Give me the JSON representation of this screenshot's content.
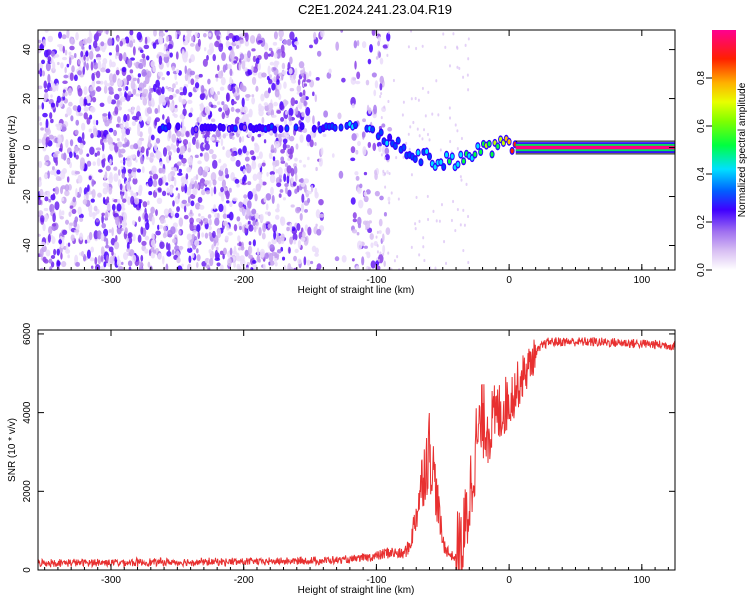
{
  "title": "C2E1.2024.241.23.04.R19",
  "colorbar": {
    "label": "Normalized spectral amplitude",
    "range": [
      0,
      1
    ],
    "ticks": [
      0.0,
      0.2,
      0.4,
      0.6,
      0.8
    ],
    "tick_labels": [
      "0.0",
      "0.2",
      "0.4",
      "0.6",
      "0.8"
    ]
  },
  "chart_data": [
    {
      "type": "heatmap",
      "xlabel": "Height of straight line (km)",
      "ylabel": "Frequency (Hz)",
      "xlim": [
        -355,
        125
      ],
      "ylim": [
        -50,
        48
      ],
      "xticks": [
        -300,
        -200,
        -100,
        0,
        100
      ],
      "yticks": [
        -40,
        -20,
        0,
        20,
        40
      ],
      "colorscale": [
        "#ffffff",
        "#d8bff3",
        "#8a40e8",
        "#4000ff",
        "#0040ff",
        "#00e0ff",
        "#00ff40",
        "#c0ff00",
        "#ffc000",
        "#ff2000",
        "#ff0080"
      ],
      "features": {
        "noise_region_x": [
          -355,
          -100
        ],
        "carrier_track": [
          {
            "x": -270,
            "y": 8,
            "v": 0.3
          },
          {
            "x": -220,
            "y": 8,
            "v": 0.3
          },
          {
            "x": -140,
            "y": 8,
            "v": 0.35
          },
          {
            "x": -120,
            "y": 9,
            "v": 0.5
          },
          {
            "x": -105,
            "y": 8,
            "v": 0.45
          },
          {
            "x": -90,
            "y": 3,
            "v": 0.4
          },
          {
            "x": -75,
            "y": -2,
            "v": 0.4
          },
          {
            "x": -60,
            "y": -5,
            "v": 0.45
          },
          {
            "x": -45,
            "y": -6,
            "v": 0.5
          },
          {
            "x": -30,
            "y": -3,
            "v": 0.55
          },
          {
            "x": -15,
            "y": 0,
            "v": 0.6
          },
          {
            "x": 0,
            "y": 1,
            "v": 0.8
          },
          {
            "x": 125,
            "y": 0,
            "v": 0.95
          }
        ]
      }
    },
    {
      "type": "line",
      "xlabel": "Height of straight line (km)",
      "ylabel": "SNR (10 * v/v)",
      "xlim": [
        -355,
        125
      ],
      "ylim": [
        0,
        6100
      ],
      "xticks": [
        -300,
        -200,
        -100,
        0,
        100
      ],
      "yticks": [
        0,
        2000,
        4000,
        6000
      ],
      "color": "#e83030",
      "series": [
        {
          "x": [
            -355,
            -300,
            -250,
            -200,
            -150,
            -120,
            -100,
            -90,
            -80,
            -75,
            -70,
            -65,
            -60,
            -57,
            -55,
            -50,
            -45,
            -40,
            -35,
            -30,
            -25,
            -20,
            -15,
            -10,
            -5,
            0,
            5,
            10,
            15,
            20,
            25,
            30,
            40,
            60,
            80,
            100,
            125
          ],
          "values": [
            180,
            190,
            200,
            210,
            230,
            260,
            350,
            450,
            400,
            600,
            1400,
            2400,
            3100,
            2500,
            2000,
            700,
            400,
            300,
            500,
            1800,
            3200,
            3800,
            3600,
            3900,
            4100,
            4300,
            4600,
            4900,
            5200,
            5500,
            5700,
            5800,
            5800,
            5800,
            5780,
            5750,
            5700
          ]
        }
      ]
    }
  ]
}
